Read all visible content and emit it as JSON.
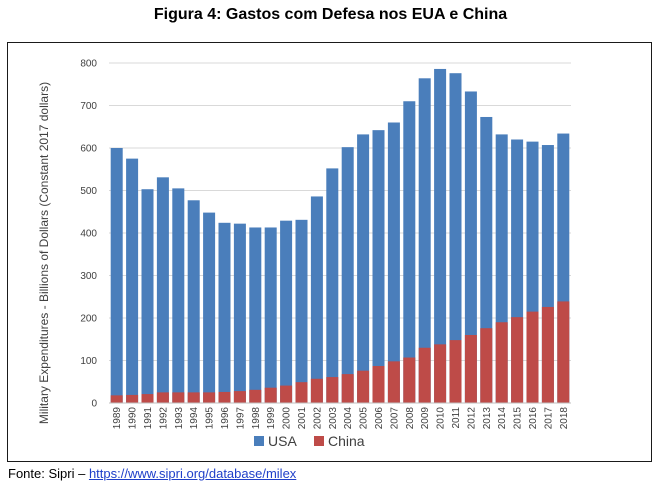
{
  "figure": {
    "title": "Figura 4: Gastos com Defesa nos EUA e China"
  },
  "source": {
    "prefix": "Fonte: Sipri – ",
    "link_text": "https://www.sipri.org/database/milex"
  },
  "chart_data": {
    "type": "bar",
    "title": "",
    "xlabel": "",
    "ylabel": "Military Expenditures - Billions of Dollars  (Constant 2017 dollars)",
    "ylim": [
      0,
      800
    ],
    "yticks": [
      "0",
      "100",
      "200",
      "300",
      "400",
      "500",
      "600",
      "700",
      "800"
    ],
    "grid": true,
    "legend_position": "bottom",
    "categories": [
      "1989",
      "1990",
      "1991",
      "1992",
      "1993",
      "1994",
      "1995",
      "1996",
      "1997",
      "1998",
      "1999",
      "2000",
      "2001",
      "2002",
      "2003",
      "2004",
      "2005",
      "2006",
      "2007",
      "2008",
      "2009",
      "2010",
      "2011",
      "2012",
      "2013",
      "2014",
      "2015",
      "2016",
      "2017",
      "2018"
    ],
    "series": [
      {
        "name": "USA",
        "color": "#4a7ebb",
        "values": [
          600,
          575,
          503,
          531,
          505,
          477,
          448,
          424,
          422,
          413,
          413,
          429,
          431,
          486,
          552,
          602,
          632,
          642,
          660,
          710,
          764,
          786,
          776,
          733,
          673,
          632,
          620,
          615,
          607,
          634
        ]
      },
      {
        "name": "China",
        "color": "#be4b48",
        "values": [
          18,
          19,
          21,
          25,
          25,
          25,
          25,
          26,
          28,
          31,
          36,
          41,
          49,
          57,
          61,
          68,
          76,
          87,
          98,
          107,
          130,
          138,
          148,
          160,
          176,
          190,
          202,
          215,
          226,
          239
        ]
      }
    ]
  }
}
